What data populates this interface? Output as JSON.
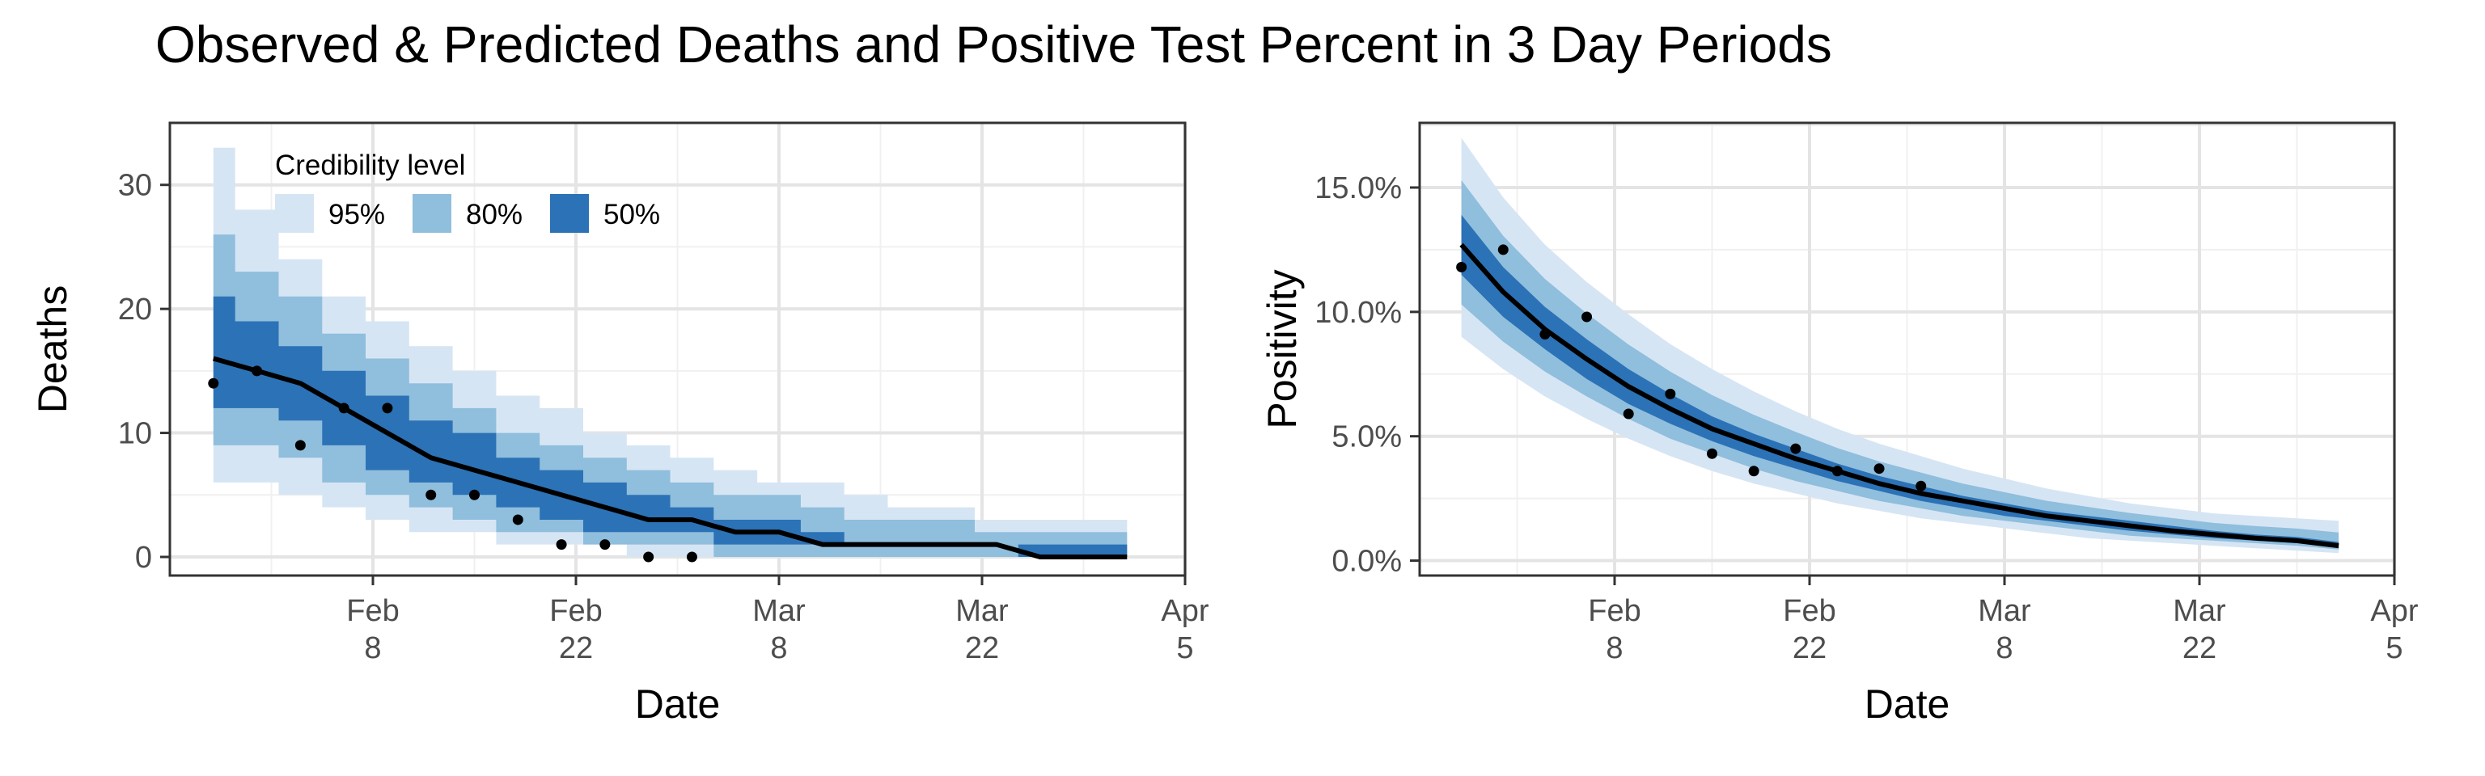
{
  "title": "Observed & Predicted Deaths and Positive Test Percent in 3 Day Periods",
  "chart_data": [
    {
      "type": "line",
      "ylabel": "Deaths",
      "xlabel": "Date",
      "xlim": [
        "2021-01-25",
        "2021-04-05"
      ],
      "ylim": [
        -1.5,
        35
      ],
      "x_ticks": [
        {
          "date": "2021-02-08",
          "label": [
            "Feb",
            "8"
          ]
        },
        {
          "date": "2021-02-22",
          "label": [
            "Feb",
            "22"
          ]
        },
        {
          "date": "2021-03-08",
          "label": [
            "Mar",
            "8"
          ]
        },
        {
          "date": "2021-03-22",
          "label": [
            "Mar",
            "22"
          ]
        },
        {
          "date": "2021-04-05",
          "label": [
            "Apr",
            "5"
          ]
        }
      ],
      "y_ticks": [
        {
          "value": 0,
          "label": "0"
        },
        {
          "value": 10,
          "label": "10"
        },
        {
          "value": 20,
          "label": "20"
        },
        {
          "value": 30,
          "label": "30"
        }
      ],
      "grid": true,
      "legend": {
        "title": "Credibility level",
        "placement": "top-left",
        "entries": [
          {
            "label": "95%",
            "color": "#D6E5F4"
          },
          {
            "label": "80%",
            "color": "#90BEDD"
          },
          {
            "label": "50%",
            "color": "#2C72B6"
          }
        ]
      },
      "x": [
        "2021-01-28",
        "2021-01-31",
        "2021-02-03",
        "2021-02-06",
        "2021-02-09",
        "2021-02-12",
        "2021-02-15",
        "2021-02-18",
        "2021-02-21",
        "2021-02-24",
        "2021-02-27",
        "2021-03-02",
        "2021-03-05",
        "2021-03-08",
        "2021-03-11",
        "2021-03-14",
        "2021-03-17",
        "2021-03-20",
        "2021-03-23",
        "2021-03-26",
        "2021-03-29",
        "2021-04-01"
      ],
      "median": [
        16,
        15,
        14,
        12,
        10,
        8,
        7,
        6,
        5,
        4,
        3,
        3,
        2,
        2,
        1,
        1,
        1,
        1,
        1,
        0,
        0,
        0
      ],
      "bands": {
        "95": {
          "lower": [
            6,
            6,
            5,
            4,
            3,
            2,
            2,
            1,
            1,
            1,
            0,
            0,
            0,
            0,
            0,
            0,
            0,
            0,
            0,
            0,
            0,
            0
          ],
          "upper": [
            33,
            28,
            24,
            21,
            19,
            17,
            15,
            13,
            12,
            10,
            9,
            8,
            7,
            6,
            6,
            5,
            4,
            4,
            3,
            3,
            3,
            3
          ]
        },
        "80": {
          "lower": [
            9,
            9,
            8,
            6,
            5,
            4,
            3,
            2,
            2,
            1,
            1,
            1,
            0,
            0,
            0,
            0,
            0,
            0,
            0,
            0,
            0,
            0
          ],
          "upper": [
            26,
            23,
            21,
            18,
            16,
            14,
            12,
            10,
            9,
            8,
            7,
            6,
            5,
            5,
            4,
            3,
            3,
            3,
            2,
            2,
            2,
            2
          ]
        },
        "50": {
          "lower": [
            12,
            12,
            11,
            9,
            7,
            6,
            5,
            4,
            3,
            2,
            2,
            2,
            1,
            1,
            1,
            1,
            1,
            1,
            1,
            0,
            0,
            0
          ],
          "upper": [
            21,
            19,
            17,
            15,
            13,
            11,
            10,
            8,
            7,
            6,
            5,
            4,
            3,
            3,
            2,
            1,
            1,
            1,
            1,
            1,
            1,
            1
          ]
        }
      },
      "observed": [
        {
          "x": "2021-01-28",
          "y": 14
        },
        {
          "x": "2021-01-31",
          "y": 15
        },
        {
          "x": "2021-02-03",
          "y": 9
        },
        {
          "x": "2021-02-06",
          "y": 12
        },
        {
          "x": "2021-02-09",
          "y": 12
        },
        {
          "x": "2021-02-12",
          "y": 5
        },
        {
          "x": "2021-02-15",
          "y": 5
        },
        {
          "x": "2021-02-18",
          "y": 3
        },
        {
          "x": "2021-02-21",
          "y": 1
        },
        {
          "x": "2021-02-24",
          "y": 1
        },
        {
          "x": "2021-02-27",
          "y": 0
        },
        {
          "x": "2021-03-02",
          "y": 0
        }
      ]
    },
    {
      "type": "line",
      "ylabel": "Positivity",
      "xlabel": "Date",
      "xlim": [
        "2021-01-25",
        "2021-04-05"
      ],
      "ylim": [
        -0.6,
        17.6
      ],
      "x_ticks": [
        {
          "date": "2021-02-08",
          "label": [
            "Feb",
            "8"
          ]
        },
        {
          "date": "2021-02-22",
          "label": [
            "Feb",
            "22"
          ]
        },
        {
          "date": "2021-03-08",
          "label": [
            "Mar",
            "8"
          ]
        },
        {
          "date": "2021-03-22",
          "label": [
            "Mar",
            "22"
          ]
        },
        {
          "date": "2021-04-05",
          "label": [
            "Apr",
            "5"
          ]
        }
      ],
      "y_ticks": [
        {
          "value": 0,
          "label": "0.0%"
        },
        {
          "value": 5,
          "label": "5.0%"
        },
        {
          "value": 10,
          "label": "10.0%"
        },
        {
          "value": 15,
          "label": "15.0%"
        }
      ],
      "grid": true,
      "x": [
        "2021-01-28",
        "2021-01-31",
        "2021-02-03",
        "2021-02-06",
        "2021-02-09",
        "2021-02-12",
        "2021-02-15",
        "2021-02-18",
        "2021-02-21",
        "2021-02-24",
        "2021-02-27",
        "2021-03-02",
        "2021-03-05",
        "2021-03-08",
        "2021-03-11",
        "2021-03-14",
        "2021-03-17",
        "2021-03-20",
        "2021-03-23",
        "2021-03-26",
        "2021-03-29",
        "2021-04-01"
      ],
      "median": [
        12.7,
        10.8,
        9.3,
        8.1,
        7.0,
        6.1,
        5.3,
        4.7,
        4.1,
        3.6,
        3.1,
        2.7,
        2.4,
        2.1,
        1.8,
        1.6,
        1.4,
        1.2,
        1.05,
        0.9,
        0.8,
        0.6
      ],
      "bands": {
        "95": {
          "lower": [
            9.0,
            7.7,
            6.6,
            5.7,
            4.9,
            4.2,
            3.6,
            3.1,
            2.7,
            2.3,
            2.0,
            1.7,
            1.5,
            1.3,
            1.1,
            0.9,
            0.8,
            0.7,
            0.6,
            0.5,
            0.4,
            0.3
          ],
          "upper": [
            17.0,
            14.6,
            12.7,
            11.2,
            9.9,
            8.7,
            7.7,
            6.8,
            6.0,
            5.3,
            4.7,
            4.2,
            3.7,
            3.3,
            2.9,
            2.6,
            2.3,
            2.1,
            1.9,
            1.8,
            1.7,
            1.6
          ]
        },
        "80": {
          "lower": [
            10.3,
            8.8,
            7.6,
            6.6,
            5.7,
            4.9,
            4.3,
            3.7,
            3.2,
            2.8,
            2.4,
            2.1,
            1.8,
            1.6,
            1.4,
            1.2,
            1.0,
            0.9,
            0.8,
            0.7,
            0.6,
            0.45
          ]
        },
        "50": {
          "lower": [
            11.5,
            9.8,
            8.5,
            7.3,
            6.3,
            5.5,
            4.8,
            4.2,
            3.7,
            3.2,
            2.8,
            2.4,
            2.1,
            1.8,
            1.6,
            1.4,
            1.2,
            1.05,
            0.9,
            0.8,
            0.7,
            0.5
          ],
          "upper": [
            13.9,
            11.8,
            10.2,
            8.9,
            7.7,
            6.7,
            5.8,
            5.1,
            4.5,
            3.9,
            3.4,
            3.0,
            2.6,
            2.3,
            2.0,
            1.8,
            1.6,
            1.4,
            1.2,
            1.05,
            0.95,
            0.75
          ]
        }
      },
      "observed": [
        {
          "x": "2021-01-28",
          "y": 11.8
        },
        {
          "x": "2021-01-31",
          "y": 12.5
        },
        {
          "x": "2021-02-03",
          "y": 9.1
        },
        {
          "x": "2021-02-06",
          "y": 9.8
        },
        {
          "x": "2021-02-09",
          "y": 5.9
        },
        {
          "x": "2021-02-12",
          "y": 6.7
        },
        {
          "x": "2021-02-15",
          "y": 4.3
        },
        {
          "x": "2021-02-18",
          "y": 3.6
        },
        {
          "x": "2021-02-21",
          "y": 4.5
        },
        {
          "x": "2021-02-24",
          "y": 3.6
        },
        {
          "x": "2021-02-27",
          "y": 3.7
        },
        {
          "x": "2021-03-02",
          "y": 3.0
        }
      ]
    }
  ]
}
